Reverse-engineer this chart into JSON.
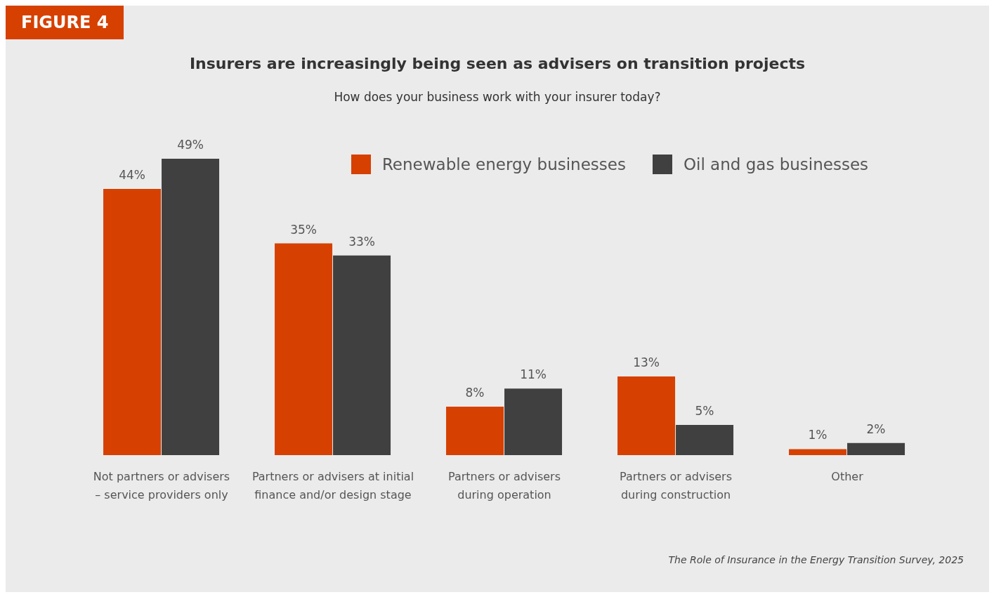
{
  "chart_data": {
    "type": "bar",
    "title": "Insurers are increasingly being seen as advisers on transition projects",
    "subtitle": "How does your business work with your insurer today?",
    "annotations": [
      "FIGURE 4",
      "The Role of Insurance in the Energy Transition Survey, 2025"
    ],
    "categories": [
      "Not partners or advisers – service providers only",
      "Partners or advisers at initial finance and/or design stage",
      "Partners or advisers during operation",
      "Partners or advisers during construction",
      "Other"
    ],
    "series": [
      {
        "name": "Renewable energy businesses",
        "color": "#d64000",
        "values": [
          44,
          35,
          8,
          13,
          1
        ],
        "value_labels": [
          "44%",
          "35%",
          "8%",
          "13%",
          "1%"
        ]
      },
      {
        "name": "Oil and gas businesses",
        "color": "#404040",
        "values": [
          49,
          33,
          11,
          5,
          2
        ],
        "value_labels": [
          "49%",
          "33%",
          "11%",
          "5%",
          "2%"
        ]
      }
    ],
    "legend": "top"
  }
}
